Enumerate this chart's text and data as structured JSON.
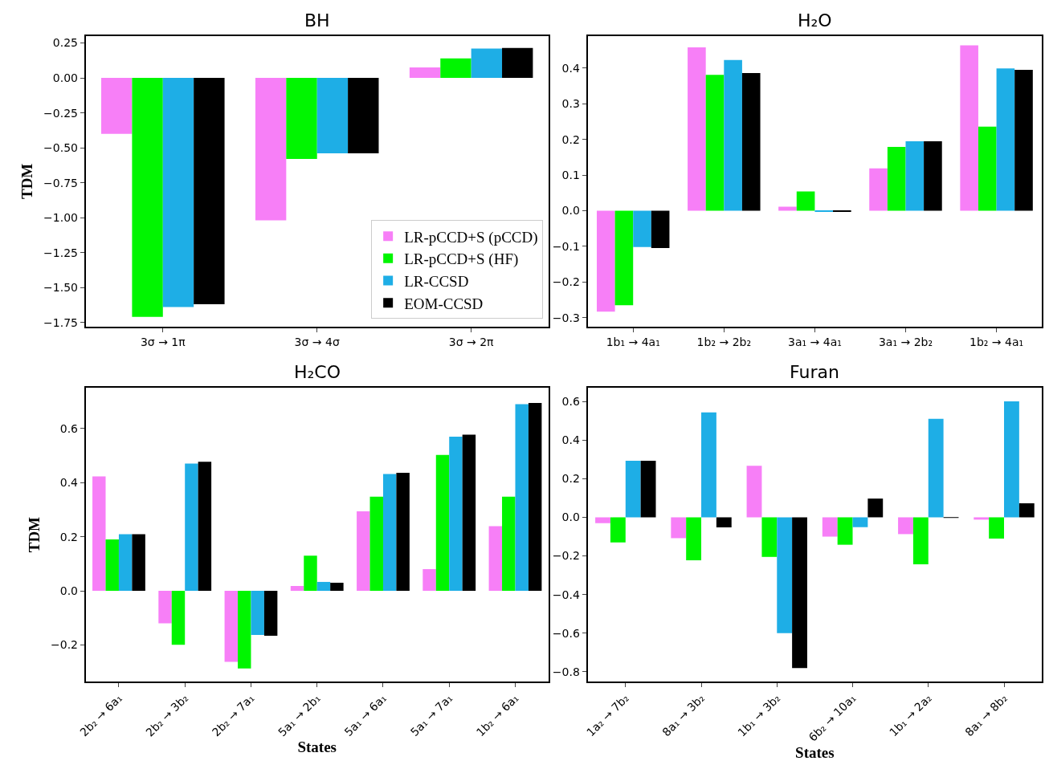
{
  "chart_data": [
    {
      "type": "bar",
      "title": "BH",
      "ylabel": "TDM",
      "legend": "bottom right",
      "categories": [
        "3σ → 1π",
        "3σ → 4σ",
        "3σ → 2π"
      ],
      "ylim": [
        -1.78,
        0.3
      ],
      "yticks": [
        {
          "value": -1.75,
          "label": "−1.75"
        },
        {
          "value": -1.5,
          "label": "−1.50"
        },
        {
          "value": -1.25,
          "label": "−1.25"
        },
        {
          "value": -1.0,
          "label": "−1.00"
        },
        {
          "value": -0.75,
          "label": "−0.75"
        },
        {
          "value": -0.5,
          "label": "−0.50"
        },
        {
          "value": -0.25,
          "label": "−0.25"
        },
        {
          "value": 0,
          "label": "0.00"
        },
        {
          "value": 0.25,
          "label": "0.25"
        }
      ],
      "series": [
        {
          "name": "LR-pCCD+S (pCCD)",
          "color": "#f77ff7",
          "values": [
            -0.4,
            -1.02,
            0.075
          ]
        },
        {
          "name": "LR-pCCD+S (HF)",
          "color": "#00f500",
          "values": [
            -1.71,
            -0.58,
            0.14
          ]
        },
        {
          "name": "LR-CCSD",
          "color": "#1eaee6",
          "values": [
            -1.64,
            -0.54,
            0.21
          ]
        },
        {
          "name": "EOM-CCSD",
          "color": "#000000",
          "values": [
            -1.62,
            -0.54,
            0.215
          ]
        }
      ]
    },
    {
      "type": "bar",
      "title": "H₂O",
      "categories": [
        "1b₁ → 4a₁",
        "1b₂ → 2b₂",
        "3a₁ → 4a₁",
        "3a₁ → 2b₂",
        "1b₂ → 4a₁"
      ],
      "ylim": [
        -0.325,
        0.49
      ],
      "yticks": [
        {
          "value": -0.3,
          "label": "−0.3"
        },
        {
          "value": -0.2,
          "label": "−0.2"
        },
        {
          "value": -0.1,
          "label": "−0.1"
        },
        {
          "value": 0,
          "label": "0.0"
        },
        0.1,
        0.2,
        0.3,
        0.4
      ],
      "series": [
        {
          "color": "#f77ff7",
          "values": [
            -0.283,
            0.458,
            0.011,
            0.119,
            0.464
          ]
        },
        {
          "color": "#00f500",
          "values": [
            -0.265,
            0.381,
            0.054,
            0.179,
            0.236
          ]
        },
        {
          "color": "#1eaee6",
          "values": [
            -0.102,
            0.423,
            -0.001,
            0.195,
            0.399
          ]
        },
        {
          "color": "#000000",
          "values": [
            -0.105,
            0.386,
            -0.001,
            0.195,
            0.395
          ]
        }
      ]
    },
    {
      "type": "bar",
      "title": "H₂CO",
      "xlabel": "States",
      "ylabel": "TDM",
      "categories": [
        "2b₂ → 6a₁",
        "2b₂ → 3b₂",
        "2b₂ → 7a₁",
        "5a₁ → 2b₁",
        "5a₁ → 6a₁",
        "5a₁ → 7a₁",
        "1b₂ → 6a₁"
      ],
      "ylim": [
        -0.335,
        0.75
      ],
      "yticks": [
        {
          "value": -0.2,
          "label": "−0.2"
        },
        {
          "value": 0,
          "label": "0.0"
        },
        0.2,
        0.4,
        0.6
      ],
      "series": [
        {
          "color": "#f77ff7",
          "values": [
            0.423,
            -0.12,
            -0.262,
            0.018,
            0.294,
            0.08,
            0.239
          ]
        },
        {
          "color": "#00f500",
          "values": [
            0.19,
            -0.199,
            -0.287,
            0.13,
            0.348,
            0.502,
            0.348
          ]
        },
        {
          "color": "#1eaee6",
          "values": [
            0.209,
            0.47,
            -0.163,
            0.033,
            0.432,
            0.57,
            0.69
          ]
        },
        {
          "color": "#000000",
          "values": [
            0.209,
            0.477,
            -0.166,
            0.03,
            0.436,
            0.577,
            0.694
          ]
        }
      ]
    },
    {
      "type": "bar",
      "title": "Furan",
      "xlabel": "States",
      "categories": [
        "1a₂ → 7b₂",
        "8a₁ → 3b₂",
        "1b₁ → 3b₂",
        "6b₂ → 10a₁",
        "1b₁ → 2a₂",
        "8a₁ → 8b₂"
      ],
      "ylim": [
        -0.85,
        0.67
      ],
      "yticks": [
        {
          "value": -0.8,
          "label": "−0.8"
        },
        {
          "value": -0.6,
          "label": "−0.6"
        },
        {
          "value": -0.4,
          "label": "−0.4"
        },
        {
          "value": -0.2,
          "label": "−0.2"
        },
        {
          "value": 0,
          "label": "0.0"
        },
        0.2,
        0.4,
        0.6
      ],
      "series": [
        {
          "color": "#f77ff7",
          "values": [
            -0.03,
            -0.108,
            0.267,
            -0.1,
            -0.087,
            -0.012
          ]
        },
        {
          "color": "#00f500",
          "values": [
            -0.13,
            -0.223,
            -0.205,
            -0.142,
            -0.243,
            -0.11
          ]
        },
        {
          "color": "#1eaee6",
          "values": [
            0.293,
            0.543,
            -0.6,
            -0.051,
            0.51,
            0.6
          ]
        },
        {
          "color": "#000000",
          "values": [
            0.293,
            -0.052,
            -0.78,
            0.097,
            -0.002,
            0.073
          ]
        }
      ]
    }
  ]
}
